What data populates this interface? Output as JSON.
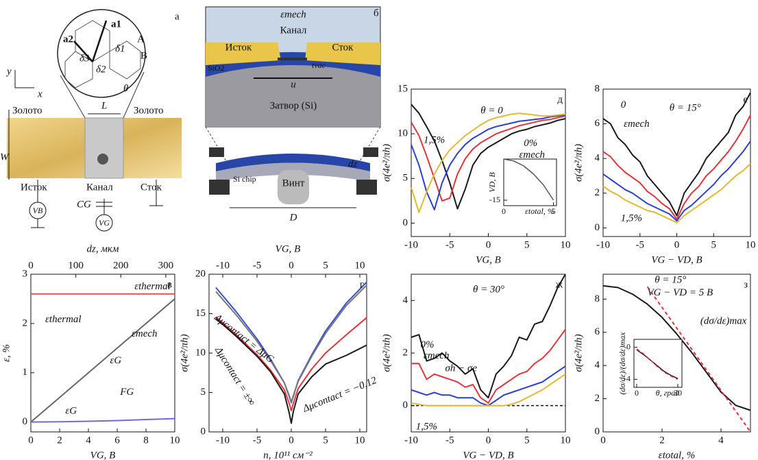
{
  "chart_data": [
    {
      "type": "line",
      "panel": "д",
      "x_label": "VG, В",
      "y_label": "σ(4e²/πh)",
      "xlim": [
        -10,
        10
      ],
      "ylim": [
        -1.5,
        15
      ],
      "xticks": [
        -10,
        -5,
        0,
        5,
        10
      ],
      "yticks": [
        0,
        5,
        10,
        15
      ],
      "x": [
        -10,
        -9,
        -8,
        -7,
        -6,
        -5,
        -4,
        -3,
        -2,
        -1,
        0,
        1,
        2,
        3,
        4,
        5,
        6,
        7,
        8,
        9,
        10
      ],
      "series": [
        {
          "color": "#1a1a1a",
          "values": [
            13.3,
            12.3,
            10.8,
            9.2,
            7,
            4.5,
            1.6,
            3.8,
            6.5,
            7.8,
            8.5,
            9,
            9.5,
            10,
            10.3,
            10.5,
            10.8,
            11,
            11.2,
            11.5,
            11.7
          ]
        },
        {
          "color": "#e8333a",
          "values": [
            11.3,
            9.8,
            7.5,
            5,
            2.5,
            2.8,
            5.5,
            7.2,
            8.3,
            9,
            9.5,
            10,
            10.3,
            10.6,
            10.9,
            11.1,
            11.3,
            11.5,
            11.6,
            11.8,
            12
          ]
        },
        {
          "color": "#2a3fd6",
          "values": [
            8.8,
            6.5,
            3.5,
            1.5,
            4.5,
            6.5,
            7.8,
            8.8,
            9.5,
            10,
            10.5,
            10.8,
            11,
            11.2,
            11.4,
            11.5,
            11.6,
            11.7,
            11.9,
            12,
            12.1
          ]
        },
        {
          "color": "#e6b830",
          "values": [
            4,
            1.2,
            3.5,
            5.5,
            7,
            8.2,
            9,
            9.8,
            10.4,
            11,
            11.5,
            11.8,
            12,
            12.2,
            12.3,
            12.2,
            12.1,
            12,
            12,
            12.1,
            12.2
          ]
        }
      ],
      "annotations": [
        "θ = 0",
        "1,5%",
        "0%",
        "εmech"
      ]
    },
    {
      "type": "line",
      "panel": "е",
      "x_label": "VG − VD, В",
      "y_label": "σ(4e²/πh)",
      "xlim": [
        -10,
        10
      ],
      "ylim": [
        -0.5,
        8
      ],
      "xticks": [
        -10,
        -5,
        0,
        5,
        10
      ],
      "yticks": [
        0,
        2,
        4,
        6,
        8
      ],
      "x": [
        -10,
        -9,
        -8,
        -7,
        -6,
        -5,
        -4,
        -3,
        -2,
        -1,
        0,
        1,
        2,
        3,
        4,
        5,
        6,
        7,
        8,
        9,
        10
      ],
      "series": [
        {
          "color": "#1a1a1a",
          "values": [
            6.3,
            6,
            5.2,
            4.8,
            4.2,
            3.8,
            3,
            2.5,
            2,
            1.5,
            0.7,
            2,
            2.6,
            3.2,
            4,
            4.5,
            5,
            5.5,
            6.5,
            7,
            7.8
          ]
        },
        {
          "color": "#e8333a",
          "values": [
            4.4,
            4.1,
            3.6,
            3.2,
            2.9,
            2.6,
            2.1,
            1.8,
            1.4,
            1.1,
            0.5,
            1.4,
            2,
            2.4,
            3,
            3.4,
            3.9,
            4.4,
            5,
            5.7,
            6.5
          ]
        },
        {
          "color": "#2a3fd6",
          "values": [
            3.1,
            2.8,
            2.5,
            2.2,
            2,
            1.7,
            1.4,
            1.2,
            1,
            0.8,
            0.4,
            1,
            1.3,
            1.7,
            2.1,
            2.5,
            3,
            3.4,
            3.9,
            4.4,
            5
          ]
        },
        {
          "color": "#e6b830",
          "values": [
            2.4,
            2.1,
            1.9,
            1.6,
            1.4,
            1.2,
            1,
            0.9,
            0.7,
            0.5,
            0.3,
            0.7,
            1,
            1.3,
            1.6,
            1.9,
            2.2,
            2.6,
            3,
            3.3,
            3.7
          ]
        }
      ],
      "annotations": [
        "θ = 15°",
        "0",
        "εmech",
        "1,5%"
      ]
    },
    {
      "type": "line",
      "panel": "ж",
      "x_label": "VG − VD, В",
      "y_label": "σ(4e²/πh)",
      "xlim": [
        -10,
        10
      ],
      "ylim": [
        -1,
        5
      ],
      "xticks": [
        -10,
        -5,
        0,
        5,
        10
      ],
      "yticks": [
        0,
        2,
        4
      ],
      "reference_line": 0,
      "x": [
        -10,
        -9,
        -8,
        -7,
        -6,
        -5,
        -4,
        -3,
        -2,
        -1,
        0,
        1,
        2,
        3,
        4,
        5,
        6,
        7,
        8,
        9,
        10
      ],
      "series": [
        {
          "color": "#1a1a1a",
          "values": [
            2.6,
            2.7,
            1.7,
            1.8,
            2,
            1.7,
            1.5,
            1.2,
            1.4,
            0.6,
            0.3,
            1.2,
            1.5,
            1.9,
            2.6,
            2.5,
            3.1,
            3.2,
            3.8,
            4.5,
            5
          ]
        },
        {
          "color": "#e8333a",
          "values": [
            1.6,
            1.6,
            1,
            1.2,
            1.1,
            1,
            0.9,
            0.7,
            0.8,
            0.3,
            0.1,
            0.6,
            0.8,
            1,
            1.2,
            1.3,
            1.6,
            1.8,
            2.1,
            2.5,
            2.9
          ]
        },
        {
          "color": "#2a3fd6",
          "values": [
            0.6,
            0.5,
            0.4,
            0.5,
            0.4,
            0.4,
            0.3,
            0.3,
            0.3,
            0.1,
            0,
            0.2,
            0.4,
            0.5,
            0.6,
            0.7,
            0.8,
            0.9,
            1.1,
            1.3,
            1.5
          ]
        },
        {
          "color": "#e6b830",
          "values": [
            0.1,
            0.05,
            0,
            0,
            0,
            0,
            0,
            0,
            0,
            0,
            0,
            0,
            0,
            0.05,
            0.15,
            0.3,
            0.45,
            0.6,
            0.8,
            1,
            1.2
          ]
        }
      ],
      "annotations": [
        "θ = 30°",
        "0%",
        "εmech",
        "σh − σe",
        "1,5%"
      ]
    },
    {
      "type": "line",
      "panel": "з",
      "x_label": "εtotal, %",
      "y_label": "σ(4e²/πh)",
      "xlim": [
        0,
        5
      ],
      "ylim": [
        0,
        9.5
      ],
      "xticks": [
        0,
        2,
        4
      ],
      "yticks": [
        0,
        2,
        4,
        6,
        8
      ],
      "x": [
        0,
        0.5,
        1,
        1.5,
        2,
        2.5,
        3,
        3.5,
        4,
        4.5,
        5
      ],
      "series": [
        {
          "color": "#1a1a1a",
          "values": [
            8.8,
            8.7,
            8.3,
            7.7,
            6.9,
            5.9,
            4.8,
            3.6,
            2.4,
            1.6,
            1.3
          ]
        },
        {
          "color": "#e8333a",
          "dashed": true,
          "values": [
            null,
            null,
            null,
            8.75,
            7.5,
            6.25,
            5,
            3.75,
            2.5,
            1.25,
            0
          ]
        }
      ],
      "annotations": [
        "θ = 15°",
        "VG − VD = 5 В",
        "(dσ/dε)max"
      ]
    },
    {
      "type": "line",
      "panel": "в",
      "x_label": "VG, В",
      "y_label": "ε, %",
      "x2_label": "dz, мкм",
      "xlim": [
        0,
        10
      ],
      "ylim": [
        -0.2,
        3
      ],
      "xticks": [
        0,
        2,
        4,
        6,
        8,
        10
      ],
      "yticks": [
        0,
        1,
        2,
        3
      ],
      "x2lim": [
        0,
        320
      ],
      "x2ticks": [
        0,
        100,
        200,
        300
      ],
      "x": [
        0,
        2,
        4,
        6,
        8,
        10
      ],
      "series": [
        {
          "color": "#e05050",
          "values": [
            2.6,
            2.6,
            2.6,
            2.6,
            2.6,
            2.6
          ]
        },
        {
          "color": "#666666",
          "values": [
            0,
            0.5,
            1,
            1.5,
            2,
            2.5
          ]
        },
        {
          "color": "#6b6bdc",
          "values": [
            0,
            0.005,
            0.015,
            0.03,
            0.05,
            0.07
          ]
        }
      ],
      "annotations": [
        "εthermal",
        "εmech",
        "εG",
        "εthermal",
        "εG",
        "FG"
      ]
    },
    {
      "type": "line",
      "panel": "г",
      "x_label": "n, 10¹¹ см⁻²",
      "y_label": "σ(4e²/πh)",
      "x2_label": "VG, В",
      "xlim": [
        -12,
        11
      ],
      "ylim": [
        0,
        20
      ],
      "xticks": [
        -10,
        -5,
        0,
        5,
        10
      ],
      "yticks": [
        0,
        5,
        10,
        15,
        20
      ],
      "x2lim": [
        -12,
        11
      ],
      "x2ticks": [
        -10,
        -5,
        0,
        5,
        10
      ],
      "x": [
        -11,
        -8,
        -5,
        -3,
        -1,
        -0.3,
        0,
        0.3,
        1,
        3,
        5,
        8,
        11
      ],
      "series": [
        {
          "color": "#3a4fd6",
          "values": [
            18.3,
            15.2,
            11.8,
            9.2,
            6.2,
            4.5,
            3.7,
            4.5,
            6.5,
            9.8,
            12.8,
            16.3,
            19
          ]
        },
        {
          "color": "#777777",
          "values": [
            17.8,
            14.8,
            11.5,
            9,
            6.2,
            4.6,
            3.8,
            4.6,
            6.4,
            9.6,
            12.5,
            16,
            18.6
          ]
        },
        {
          "color": "#e8333a",
          "values": [
            14.6,
            12.3,
            9.8,
            7.8,
            5.3,
            3.6,
            2.7,
            3.6,
            5.5,
            8,
            10,
            12.3,
            14.5
          ]
        },
        {
          "color": "#1a1a1a",
          "values": [
            14.4,
            12.1,
            9.6,
            7.6,
            4.8,
            2.4,
            1.1,
            2.6,
            4.8,
            7,
            8.6,
            9.7,
            11
          ]
        }
      ],
      "annotations": [
        "Δμcontact = ΔμG",
        "Δμcontact = ±∞",
        "Δμcontact = −0,12"
      ]
    },
    {
      "type": "line",
      "x_label": "εtotal, %",
      "y_label": "VD, В",
      "xlim": [
        0,
        5.3
      ],
      "ylim": [
        -17,
        0
      ],
      "xticks": [
        0,
        5
      ],
      "yticks": [
        -15
      ],
      "x": [
        0,
        1,
        2,
        3,
        4,
        5
      ],
      "series": [
        {
          "color": "#555555",
          "values": [
            0,
            -0.7,
            -2.5,
            -5.5,
            -9.5,
            -15
          ]
        }
      ]
    },
    {
      "type": "line",
      "x_label": "θ, град",
      "y_label": "(dσ/dε)/(dσ/dε)max",
      "xlim": [
        -2,
        33
      ],
      "ylim": [
        -5,
        1
      ],
      "xticks": [
        0,
        30
      ],
      "yticks": [
        0,
        -4
      ],
      "x": [
        0,
        5,
        10,
        15,
        20,
        25,
        30
      ],
      "series": [
        {
          "color": "#1a1a1a",
          "values": [
            -0.3,
            -0.9,
            -1.6,
            -2.3,
            -3,
            -3.5,
            -3.9
          ]
        },
        {
          "color": "#e8333a",
          "dashed": true,
          "values": [
            -0.2,
            -0.8,
            -1.6,
            -2.4,
            -3.1,
            -3.6,
            -4
          ]
        }
      ]
    }
  ],
  "diagram_a": [
    "а",
    "Золото",
    "Золото",
    "L",
    "W",
    "Исток",
    "Канал",
    "Сток",
    "CG",
    "VB",
    "VG",
    "a1",
    "a2",
    "A",
    "B",
    "δ1",
    "δ2",
    "δ3",
    "θ",
    "y",
    "x"
  ],
  "diagram_b": [
    "б",
    "εmech",
    "Канал",
    "Исток",
    "Сток",
    "SiO2",
    "tvac",
    "u",
    "Затвор (Si)",
    "Si chip",
    "dz",
    "Винт",
    "D"
  ]
}
